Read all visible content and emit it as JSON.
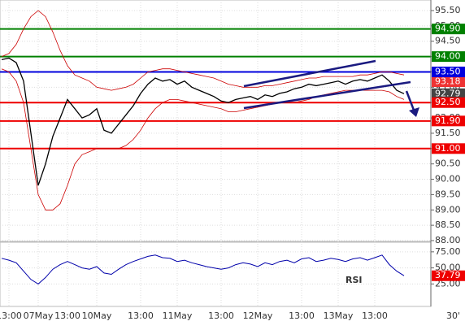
{
  "chart_data": [
    {
      "type": "price",
      "categories": [
        null,
        "13:00",
        null,
        null,
        null,
        "07May",
        null,
        null,
        null,
        "13:00",
        null,
        null,
        null,
        "10May",
        null,
        null,
        null,
        null,
        null,
        "13:00",
        null,
        null,
        null,
        null,
        "11May",
        null,
        null,
        null,
        null,
        null,
        "13:00",
        null,
        null,
        null,
        null,
        "12May",
        null,
        null,
        null,
        null,
        null,
        "13:00",
        null,
        null,
        null,
        null,
        "13May",
        null,
        null,
        null,
        null,
        "13:00",
        null,
        null,
        null,
        null
      ],
      "timeframe": "30'",
      "series": [
        {
          "name": "close",
          "color": "#000000",
          "values": [
            93.9,
            93.95,
            93.8,
            93.2,
            91.5,
            89.8,
            90.5,
            91.4,
            92.0,
            92.6,
            92.3,
            92.0,
            92.1,
            92.3,
            91.6,
            91.5,
            91.8,
            92.1,
            92.4,
            92.8,
            93.1,
            93.3,
            93.2,
            93.25,
            93.1,
            93.2,
            93.0,
            92.9,
            92.8,
            92.7,
            92.55,
            92.5,
            92.6,
            92.65,
            92.7,
            92.6,
            92.75,
            92.7,
            92.8,
            92.85,
            92.95,
            93.0,
            93.1,
            93.05,
            93.1,
            93.15,
            93.2,
            93.1,
            93.2,
            93.25,
            93.2,
            93.3,
            93.4,
            93.2,
            92.9,
            92.79
          ]
        },
        {
          "name": "upper band",
          "color": "#cc0000",
          "values": [
            94.0,
            94.1,
            94.4,
            94.9,
            95.3,
            95.5,
            95.3,
            94.8,
            94.2,
            93.7,
            93.4,
            93.3,
            93.2,
            93.0,
            92.95,
            92.9,
            92.95,
            93.0,
            93.1,
            93.3,
            93.5,
            93.55,
            93.6,
            93.6,
            93.55,
            93.5,
            93.45,
            93.4,
            93.35,
            93.3,
            93.2,
            93.1,
            93.05,
            93.0,
            93.0,
            93.0,
            93.05,
            93.05,
            93.1,
            93.15,
            93.2,
            93.25,
            93.3,
            93.3,
            93.35,
            93.35,
            93.35,
            93.35,
            93.35,
            93.4,
            93.4,
            93.45,
            93.5,
            93.5,
            93.45,
            93.4
          ]
        },
        {
          "name": "lower band",
          "color": "#cc0000",
          "values": [
            93.6,
            93.5,
            93.2,
            92.5,
            91.0,
            89.5,
            89.0,
            89.0,
            89.2,
            89.8,
            90.5,
            90.8,
            90.9,
            91.0,
            91.0,
            91.0,
            91.0,
            91.1,
            91.3,
            91.6,
            92.0,
            92.3,
            92.5,
            92.6,
            92.6,
            92.55,
            92.5,
            92.45,
            92.4,
            92.35,
            92.3,
            92.2,
            92.2,
            92.25,
            92.3,
            92.35,
            92.4,
            92.45,
            92.5,
            92.5,
            92.5,
            92.55,
            92.6,
            92.7,
            92.75,
            92.8,
            92.85,
            92.9,
            92.9,
            92.9,
            92.9,
            92.9,
            92.9,
            92.85,
            92.7,
            92.6
          ]
        }
      ],
      "ylim": [
        88.0,
        95.5
      ],
      "yticks": [
        {
          "value": 88.0,
          "label": "88.00"
        },
        {
          "value": 88.5,
          "label": "88.50"
        },
        {
          "value": 89.0,
          "label": "89.00"
        },
        {
          "value": 89.5,
          "label": "89.50"
        },
        {
          "value": 90.0,
          "label": "90.00"
        },
        {
          "value": 90.5,
          "label": "90.50"
        },
        {
          "value": 91.0,
          "label": "91.00"
        },
        {
          "value": 91.5,
          "label": "91.50"
        },
        {
          "value": 92.0,
          "label": "92.00"
        },
        {
          "value": 92.5,
          "label": "92.50"
        },
        {
          "value": 93.0,
          "label": "93.00"
        },
        {
          "value": 93.5,
          "label": "93.50"
        },
        {
          "value": 94.0,
          "label": "94.00"
        },
        {
          "value": 94.5,
          "label": "94.50"
        },
        {
          "value": 95.0,
          "label": "95.00"
        },
        {
          "value": 95.5,
          "label": "95.50"
        }
      ],
      "grid": true,
      "levels": [
        {
          "value": 94.9,
          "label": "94.90",
          "color": "#008000"
        },
        {
          "value": 94.0,
          "label": "94.00",
          "color": "#008000"
        },
        {
          "value": 93.5,
          "label": "93.50",
          "color": "#0000dd"
        },
        {
          "value": 92.5,
          "label": "92.50",
          "color": "#ee0000"
        },
        {
          "value": 91.9,
          "label": "91.90",
          "color": "#ee0000"
        },
        {
          "value": 91.0,
          "label": "91.00",
          "color": "#ee0000"
        }
      ],
      "markers": [
        {
          "value": 93.18,
          "label": "93.18",
          "color": "#ee3333"
        },
        {
          "value": 92.79,
          "label": "92.79",
          "color": "#444444"
        }
      ]
    },
    {
      "type": "rsi",
      "title": "RSI",
      "series": [
        {
          "name": "RSI",
          "color": "#0000aa",
          "values": [
            65,
            62,
            58,
            45,
            32,
            25,
            35,
            48,
            55,
            60,
            55,
            50,
            48,
            52,
            42,
            40,
            48,
            55,
            60,
            64,
            68,
            70,
            66,
            65,
            60,
            62,
            58,
            55,
            52,
            50,
            48,
            50,
            55,
            58,
            56,
            52,
            58,
            55,
            60,
            62,
            58,
            64,
            66,
            60,
            62,
            65,
            63,
            60,
            64,
            66,
            62,
            66,
            70,
            55,
            45,
            37.79
          ]
        }
      ],
      "ylim": [
        -10,
        90
      ],
      "yticks": [
        {
          "value": 25,
          "label": "25.00"
        },
        {
          "value": 50,
          "label": "50.00"
        },
        {
          "value": 75,
          "label": "75.00"
        }
      ],
      "markers": [
        {
          "value": 37.79,
          "label": "37.79",
          "color": "#ee0000"
        }
      ]
    }
  ]
}
